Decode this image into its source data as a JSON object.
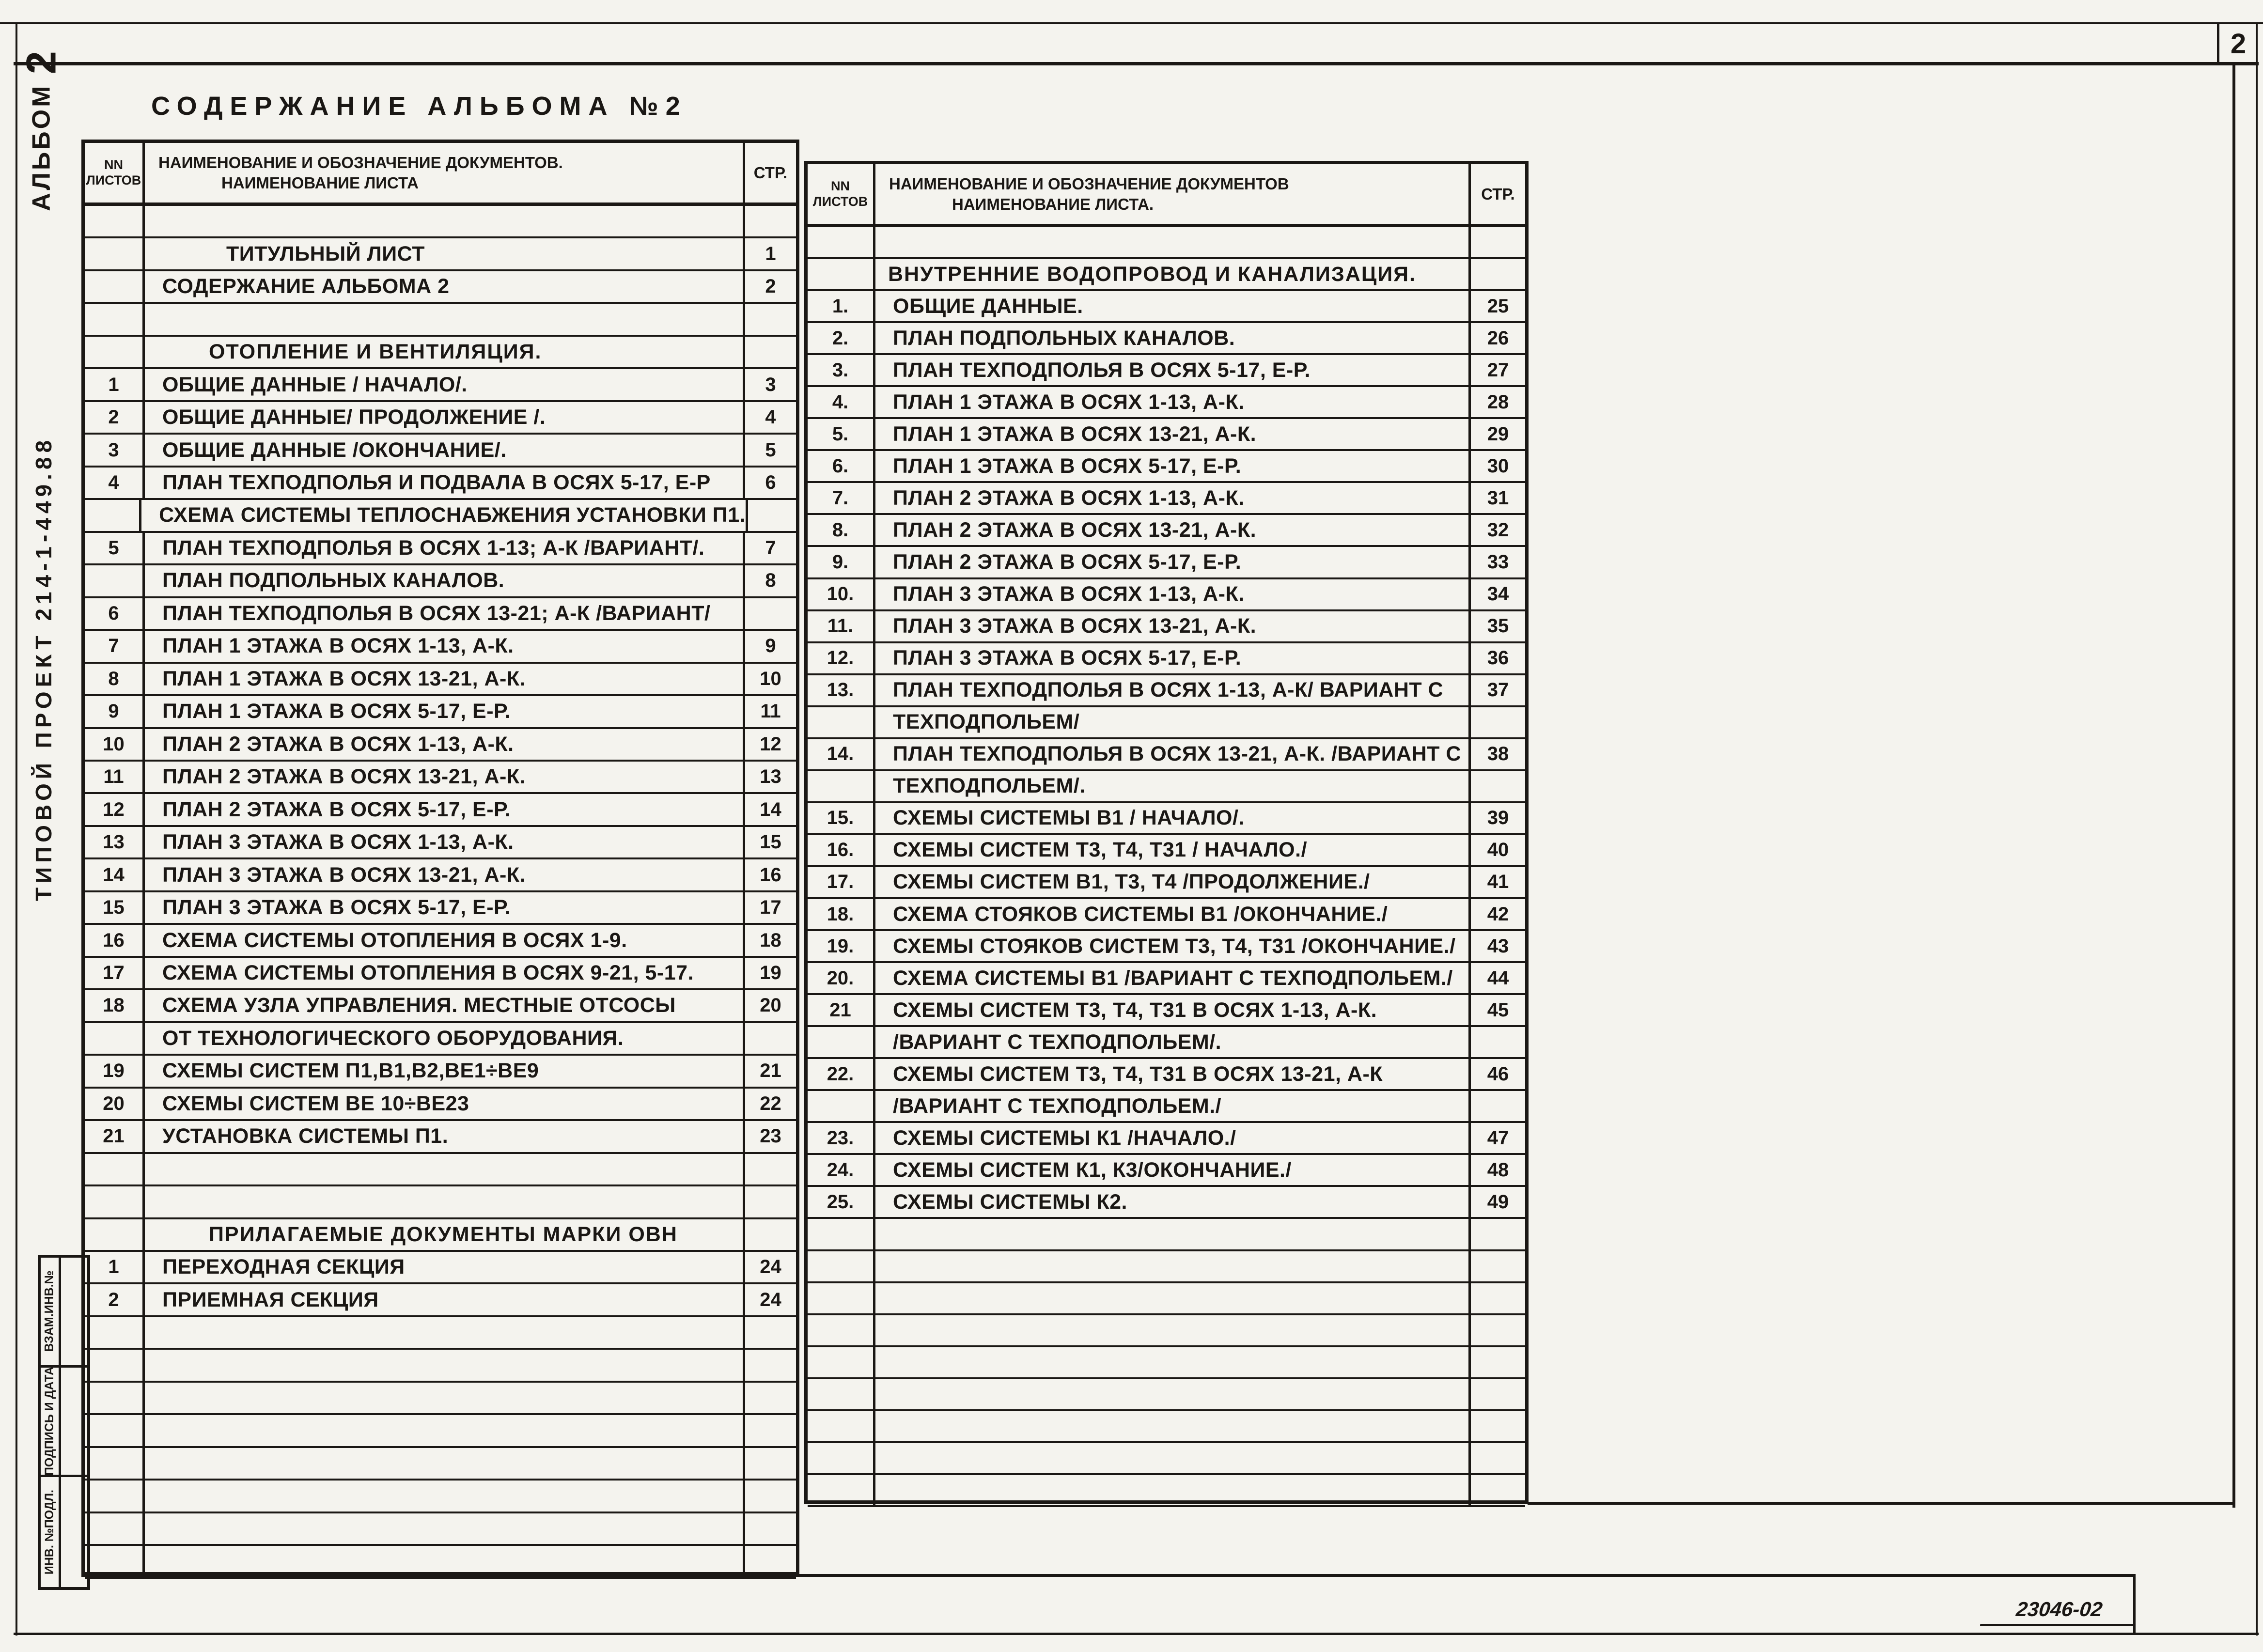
{
  "page": {
    "sheet_number": "2",
    "doc_mark": "23046-02",
    "title": "СОДЕРЖАНИЕ  АЛЬБОМА №2",
    "ink_color": "#1a1714",
    "paper_color": "#f4f3ee"
  },
  "margin": {
    "album_word": "АЛЬБОМ",
    "album_number": "2",
    "project_label": "ТИПОВОЙ ПРОЕКТ 214-1-449.88",
    "stamp_fields": [
      "ВЗАМ.ИНВ.№",
      "ПОДПИСЬ И ДАТА",
      "ИНВ. №ПОДЛ."
    ]
  },
  "left_table": {
    "headers": {
      "num_line1": "NN",
      "num_line2": "ЛИСТОВ",
      "name_line1": "НАИМЕНОВАНИЕ И ОБОЗНАЧЕНИЕ ДОКУМЕНТОВ.",
      "name_line2": "НАИМЕНОВАНИЕ ЛИСТА",
      "page": "СТР."
    },
    "rows": [
      {
        "kind": "empty"
      },
      {
        "kind": "indent",
        "t": "ТИТУЛЬНЫЙ ЛИСТ",
        "p": "1"
      },
      {
        "t": "СОДЕРЖАНИЕ АЛЬБОМА 2",
        "p": "2"
      },
      {
        "kind": "empty"
      },
      {
        "kind": "section",
        "t": "ОТОПЛЕНИЕ И ВЕНТИЛЯЦИЯ."
      },
      {
        "n": "1",
        "t": "ОБЩИЕ ДАННЫЕ / НАЧАЛО/.",
        "p": "3"
      },
      {
        "n": "2",
        "t": "ОБЩИЕ ДАННЫЕ/ ПРОДОЛЖЕНИЕ /.",
        "p": "4"
      },
      {
        "n": "3",
        "t": "ОБЩИЕ ДАННЫЕ /ОКОНЧАНИЕ/.",
        "p": "5"
      },
      {
        "n": "4",
        "t": "ПЛАН ТЕХПОДПОЛЬЯ И ПОДВАЛА В ОСЯХ 5-17, Е-Р",
        "p": "6"
      },
      {
        "kind": "cont",
        "t": "СХЕМА СИСТЕМЫ ТЕПЛОСНАБЖЕНИЯ УСТАНОВКИ П1."
      },
      {
        "n": "5",
        "t": "ПЛАН ТЕХПОДПОЛЬЯ В ОСЯХ 1-13; А-К /ВАРИАНТ/.",
        "p": "7"
      },
      {
        "t": "ПЛАН ПОДПОЛЬНЫХ КАНАЛОВ.",
        "p": "8"
      },
      {
        "n": "6",
        "t": "ПЛАН ТЕХПОДПОЛЬЯ В ОСЯХ 13-21; А-К /ВАРИАНТ/"
      },
      {
        "n": "7",
        "t": "ПЛАН 1 ЭТАЖА В ОСЯХ 1-13, А-К.",
        "p": "9"
      },
      {
        "n": "8",
        "t": "ПЛАН 1 ЭТАЖА В ОСЯХ 13-21, А-К.",
        "p": "10"
      },
      {
        "n": "9",
        "t": "ПЛАН 1 ЭТАЖА В ОСЯХ 5-17, Е-Р.",
        "p": "11"
      },
      {
        "n": "10",
        "t": "ПЛАН 2 ЭТАЖА В ОСЯХ 1-13, А-К.",
        "p": "12"
      },
      {
        "n": "11",
        "t": "ПЛАН 2 ЭТАЖА В ОСЯХ 13-21, А-К.",
        "p": "13"
      },
      {
        "n": "12",
        "t": "ПЛАН 2 ЭТАЖА В ОСЯХ 5-17, Е-Р.",
        "p": "14"
      },
      {
        "n": "13",
        "t": "ПЛАН 3 ЭТАЖА В ОСЯХ 1-13, А-К.",
        "p": "15"
      },
      {
        "n": "14",
        "t": "ПЛАН 3 ЭТАЖА В ОСЯХ 13-21, А-К.",
        "p": "16"
      },
      {
        "n": "15",
        "t": "ПЛАН 3 ЭТАЖА В ОСЯХ 5-17, Е-Р.",
        "p": "17"
      },
      {
        "n": "16",
        "t": "СХЕМА СИСТЕМЫ ОТОПЛЕНИЯ В ОСЯХ 1-9.",
        "p": "18"
      },
      {
        "n": "17",
        "t": "СХЕМА СИСТЕМЫ ОТОПЛЕНИЯ В ОСЯХ 9-21, 5-17.",
        "p": "19"
      },
      {
        "n": "18",
        "t": "СХЕМА УЗЛА УПРАВЛЕНИЯ. МЕСТНЫЕ ОТСОСЫ",
        "p": "20"
      },
      {
        "kind": "cont",
        "t": "ОТ ТЕХНОЛОГИЧЕСКОГО ОБОРУДОВАНИЯ."
      },
      {
        "n": "19",
        "t": "СХЕМЫ СИСТЕМ П1,В1,В2,ВЕ1÷ВЕ9",
        "p": "21"
      },
      {
        "n": "20",
        "t": "СХЕМЫ СИСТЕМ ВЕ 10÷ВЕ23",
        "p": "22"
      },
      {
        "n": "21",
        "t": "УСТАНОВКА СИСТЕМЫ П1.",
        "p": "23"
      },
      {
        "kind": "empty"
      },
      {
        "kind": "empty"
      },
      {
        "kind": "section",
        "t": "ПРИЛАГАЕМЫЕ  ДОКУМЕНТЫ МАРКИ ОВН"
      },
      {
        "n": "1",
        "t": "ПЕРЕХОДНАЯ СЕКЦИЯ",
        "p": "24"
      },
      {
        "n": "2",
        "t": "ПРИЕМНАЯ СЕКЦИЯ",
        "p": "24"
      },
      {
        "kind": "empty"
      },
      {
        "kind": "empty"
      },
      {
        "kind": "empty"
      },
      {
        "kind": "empty"
      },
      {
        "kind": "empty"
      },
      {
        "kind": "empty"
      },
      {
        "kind": "empty"
      },
      {
        "kind": "empty"
      }
    ]
  },
  "right_table": {
    "headers": {
      "num_line1": "NN",
      "num_line2": "ЛИСТОВ",
      "name_line1": "НАИМЕНОВАНИЕ И ОБОЗНАЧЕНИЕ ДОКУМЕНТОВ",
      "name_line2": "НАИМЕНОВАНИЕ ЛИСТА.",
      "page": "СТР."
    },
    "rows": [
      {
        "kind": "empty"
      },
      {
        "kind": "section",
        "t": "ВНУТРЕННИЕ ВОДОПРОВОД И КАНАЛИЗАЦИЯ."
      },
      {
        "n": "1.",
        "t": "ОБЩИЕ ДАННЫЕ.",
        "p": "25"
      },
      {
        "n": "2.",
        "t": "ПЛАН ПОДПОЛЬНЫХ КАНАЛОВ.",
        "p": "26"
      },
      {
        "n": "3.",
        "t": "ПЛАН ТЕХПОДПОЛЬЯ В ОСЯХ 5-17, Е-Р.",
        "p": "27"
      },
      {
        "n": "4.",
        "t": "ПЛАН 1 ЭТАЖА В ОСЯХ 1-13, А-К.",
        "p": "28"
      },
      {
        "n": "5.",
        "t": "ПЛАН 1 ЭТАЖА В ОСЯХ 13-21, А-К.",
        "p": "29"
      },
      {
        "n": "6.",
        "t": "ПЛАН 1 ЭТАЖА В ОСЯХ 5-17, Е-Р.",
        "p": "30"
      },
      {
        "n": "7.",
        "t": "ПЛАН 2 ЭТАЖА В ОСЯХ 1-13, А-К.",
        "p": "31"
      },
      {
        "n": "8.",
        "t": "ПЛАН 2 ЭТАЖА В ОСЯХ 13-21, А-К.",
        "p": "32"
      },
      {
        "n": "9.",
        "t": "ПЛАН 2 ЭТАЖА В ОСЯХ 5-17, Е-Р.",
        "p": "33"
      },
      {
        "n": "10.",
        "t": "ПЛАН 3 ЭТАЖА В ОСЯХ 1-13, А-К.",
        "p": "34"
      },
      {
        "n": "11.",
        "t": "ПЛАН 3 ЭТАЖА В ОСЯХ 13-21, А-К.",
        "p": "35"
      },
      {
        "n": "12.",
        "t": "ПЛАН 3 ЭТАЖА В ОСЯХ 5-17, Е-Р.",
        "p": "36"
      },
      {
        "n": "13.",
        "t": "ПЛАН ТЕХПОДПОЛЬЯ В ОСЯХ 1-13, А-К/ ВАРИАНТ С",
        "p": "37"
      },
      {
        "kind": "cont",
        "t": "ТЕХПОДПОЛЬЕМ/"
      },
      {
        "n": "14.",
        "t": "ПЛАН ТЕХПОДПОЛЬЯ В ОСЯХ 13-21, А-К. /ВАРИАНТ С",
        "p": "38"
      },
      {
        "kind": "cont",
        "t": "ТЕХПОДПОЛЬЕМ/."
      },
      {
        "n": "15.",
        "t": "СХЕМЫ СИСТЕМЫ В1 / НАЧАЛО/.",
        "p": "39"
      },
      {
        "n": "16.",
        "t": "СХЕМЫ СИСТЕМ Т3, Т4, Т31 / НАЧАЛО./",
        "p": "40"
      },
      {
        "n": "17.",
        "t": "СХЕМЫ СИСТЕМ В1, Т3, Т4 /ПРОДОЛЖЕНИЕ./",
        "p": "41"
      },
      {
        "n": "18.",
        "t": "СХЕМА СТОЯКОВ СИСТЕМЫ В1 /ОКОНЧАНИЕ./",
        "p": "42"
      },
      {
        "n": "19.",
        "t": "СХЕМЫ СТОЯКОВ СИСТЕМ Т3, Т4, Т31 /ОКОНЧАНИЕ./",
        "p": "43"
      },
      {
        "n": "20.",
        "t": "СХЕМА СИСТЕМЫ В1 /ВАРИАНТ С ТЕХПОДПОЛЬЕМ./",
        "p": "44"
      },
      {
        "n": "21",
        "t": "СХЕМЫ СИСТЕМ Т3, Т4, Т31 В ОСЯХ 1-13, А-К.",
        "p": "45"
      },
      {
        "kind": "cont",
        "t": "/ВАРИАНТ С ТЕХПОДПОЛЬЕМ/."
      },
      {
        "n": "22.",
        "t": "СХЕМЫ СИСТЕМ Т3, Т4, Т31 В ОСЯХ 13-21, А-К",
        "p": "46"
      },
      {
        "kind": "cont",
        "t": "/ВАРИАНТ С ТЕХПОДПОЛЬЕМ./"
      },
      {
        "n": "23.",
        "t": "СХЕМЫ СИСТЕМЫ К1  /НАЧАЛО./",
        "p": "47"
      },
      {
        "n": "24.",
        "t": "СХЕМЫ СИСТЕМ К1, К3/ОКОНЧАНИЕ./",
        "p": "48"
      },
      {
        "n": "25.",
        "t": "СХЕМЫ СИСТЕМЫ К2.",
        "p": "49"
      },
      {
        "kind": "empty"
      },
      {
        "kind": "empty"
      },
      {
        "kind": "empty"
      },
      {
        "kind": "empty"
      },
      {
        "kind": "empty"
      },
      {
        "kind": "empty"
      },
      {
        "kind": "empty"
      },
      {
        "kind": "empty"
      },
      {
        "kind": "empty"
      }
    ]
  }
}
